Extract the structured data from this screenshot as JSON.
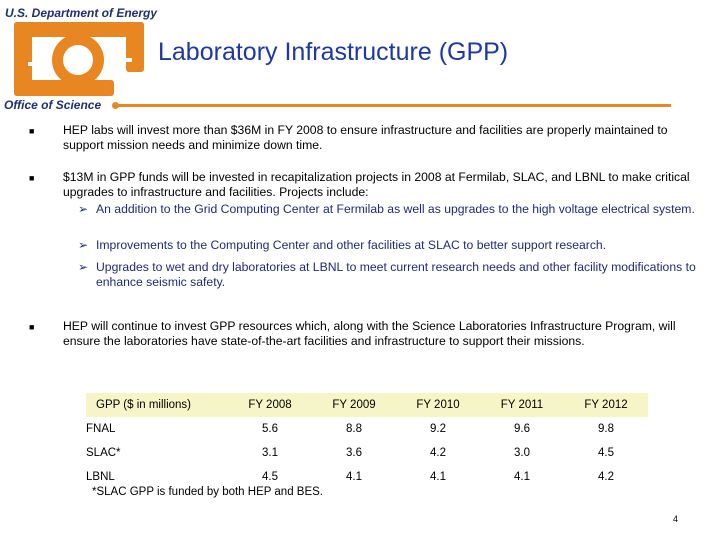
{
  "header": {
    "agency": "U.S. Department of Energy",
    "office": "Office of Science",
    "title": "Laboratory Infrastructure (GPP)"
  },
  "bullets": [
    {
      "text": "HEP labs will invest more than $36M in FY 2008 to ensure infrastructure and facilities are properly maintained to support mission needs and minimize down time."
    },
    {
      "text": "$13M in GPP funds will be invested in recapitalization projects in 2008 at Fermilab, SLAC, and LBNL to make critical upgrades to infrastructure and facilities.  Projects include:",
      "subitems": [
        "An addition to the Grid Computing Center at Fermilab as well as upgrades to the high voltage electrical system.",
        "Improvements to the Computing Center and other facilities at SLAC to better support research.",
        "Upgrades to wet and dry laboratories at LBNL to meet current research needs and other facility modifications to enhance seismic safety."
      ]
    },
    {
      "text": "HEP will continue to invest GPP resources which, along with the Science Laboratories Infrastructure Program, will ensure the laboratories have state-of-the-art facilities and infrastructure to support their missions."
    }
  ],
  "table": {
    "headers": [
      "GPP ($ in millions)",
      "FY 2008",
      "FY 2009",
      "FY 2010",
      "FY 2011",
      "FY 2012"
    ],
    "rows": [
      [
        "FNAL",
        "5.6",
        "8.8",
        "9.2",
        "9.6",
        "9.8"
      ],
      [
        "SLAC*",
        "3.1",
        "3.6",
        "4.2",
        "3.0",
        "4.5"
      ],
      [
        "LBNL",
        "4.5",
        "4.1",
        "4.1",
        "4.1",
        "4.2"
      ]
    ],
    "footnote": "*SLAC GPP is funded by both HEP and BES."
  },
  "page_number": "4",
  "colors": {
    "title": "#1c37a6",
    "accent": "#e88722",
    "agency": "#1f2f73",
    "table_header_bg": "#f6f5c7"
  }
}
